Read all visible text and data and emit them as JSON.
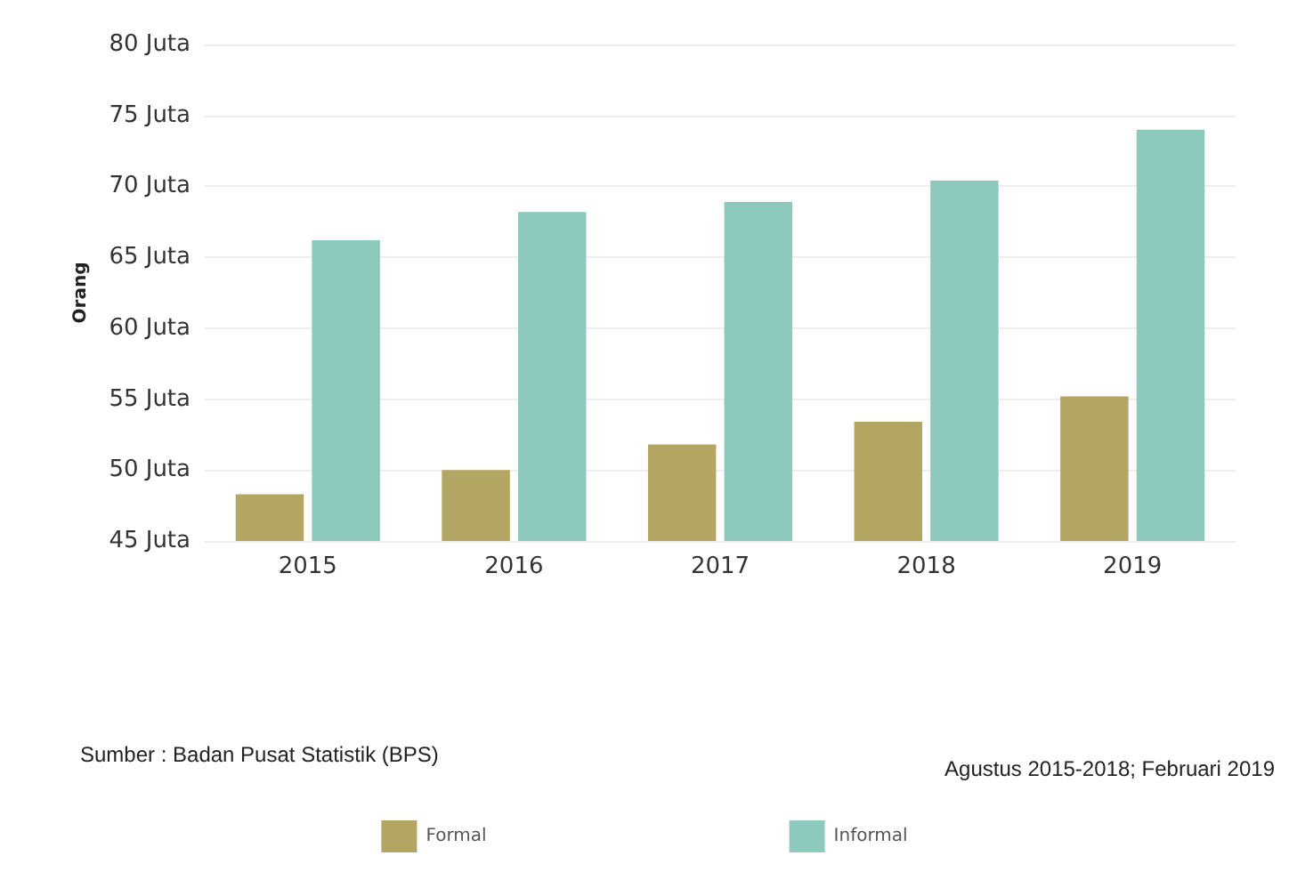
{
  "chart_data": {
    "type": "bar",
    "ylabel": "Orang",
    "categories": [
      "2015",
      "2016",
      "2017",
      "2018",
      "2019"
    ],
    "series": [
      {
        "name": "Formal",
        "color": "#b3a562",
        "values": [
          48.3,
          50.0,
          51.8,
          53.4,
          55.2
        ]
      },
      {
        "name": "Informal",
        "color": "#8dc9bd",
        "values": [
          66.2,
          68.2,
          68.9,
          70.4,
          74.0
        ]
      }
    ],
    "ylim": [
      45,
      80
    ],
    "yticks": [
      {
        "value": 45,
        "label": "45 Juta"
      },
      {
        "value": 50,
        "label": "50 Juta"
      },
      {
        "value": 55,
        "label": "55 Juta"
      },
      {
        "value": 60,
        "label": "60 Juta"
      },
      {
        "value": 65,
        "label": "65 Juta"
      },
      {
        "value": 70,
        "label": "70 Juta"
      },
      {
        "value": 75,
        "label": "75 Juta"
      },
      {
        "value": 80,
        "label": "80 Juta"
      }
    ],
    "annotations": [
      "Sumber : Badan Pusat Statistik (BPS)",
      "Agustus 2015-2018; Februari 2019"
    ],
    "grid": "y",
    "legend": "bottom"
  }
}
